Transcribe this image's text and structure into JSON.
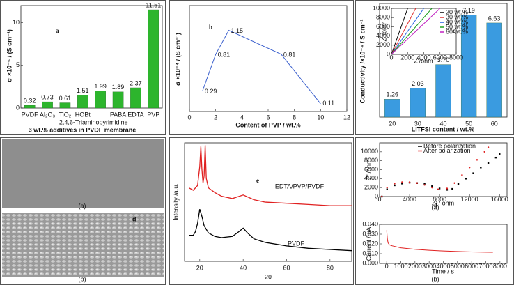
{
  "chart_data": [
    {
      "type": "bar",
      "panel_label": "a",
      "y_label": "σ ×10⁻⁵ / (S cm⁻¹)",
      "x_label": "3 wt.% additives in PVDF membrane",
      "categories": [
        "PVDF",
        "Al₂O₃",
        "TiO₂",
        "HOBt",
        "2,4,6-Triaminopyrimidine",
        "PABA",
        "EDTA",
        "PVP"
      ],
      "values": [
        0.32,
        0.73,
        0.61,
        1.51,
        1.99,
        1.89,
        2.37,
        11.51
      ],
      "color": "#2db52d",
      "ylim": [
        0,
        12
      ],
      "yticks": [
        0,
        5,
        10
      ]
    },
    {
      "type": "line",
      "panel_label": "b",
      "y_label": "σ ×10⁻⁴ / (S cm⁻¹)",
      "x_label": "Content of PVP / wt.%",
      "x": [
        1,
        2,
        3,
        7,
        10
      ],
      "values": [
        0.29,
        0.81,
        1.15,
        0.81,
        0.11
      ],
      "color": "#3a5fcd",
      "marker_color": "#e03030",
      "markers": true,
      "xlim": [
        0,
        12
      ],
      "xticks": [
        0,
        2,
        4,
        6,
        8,
        10,
        12
      ],
      "ylim": [
        0,
        1.5
      ]
    },
    {
      "type": "bar",
      "panel_label": "c",
      "y_label": "Conductivity /×10⁻⁴ / S cm⁻¹",
      "x_label": "LiTFSI content / wt.%",
      "categories": [
        "20",
        "30",
        "40",
        "50",
        "60"
      ],
      "values": [
        1.26,
        2.03,
        3.7,
        7.19,
        6.63
      ],
      "value_labels": [
        "1.26",
        "2.03",
        "3.70",
        "7.19",
        "6.63"
      ],
      "color": "#3a9be0",
      "ylim": [
        0,
        8
      ]
    },
    {
      "type": "line",
      "x_label": "Z'/ohm",
      "y_label": "Z''/ohm",
      "legend": "upper right",
      "series": [
        {
          "name": "20 wt.%",
          "color": "#000000",
          "x": [
            0,
            2000
          ],
          "values": [
            0,
            10000
          ]
        },
        {
          "name": "30 wt.%",
          "color": "#e03030",
          "x": [
            0,
            3000
          ],
          "values": [
            0,
            10000
          ]
        },
        {
          "name": "40 wt.%",
          "color": "#2060e0",
          "x": [
            0,
            4000
          ],
          "values": [
            0,
            10000
          ]
        },
        {
          "name": "50 wt.%",
          "color": "#20a020",
          "x": [
            0,
            5000
          ],
          "values": [
            0,
            10000
          ]
        },
        {
          "name": "60 wt.%",
          "color": "#c020c0",
          "x": [
            0,
            6000
          ],
          "values": [
            0,
            10000
          ]
        }
      ],
      "xlim": [
        0,
        8000
      ],
      "xticks": [
        0,
        2000,
        4000,
        6000,
        8000
      ],
      "ylim": [
        0,
        10000
      ],
      "yticks": [
        0,
        2000,
        4000,
        6000,
        8000,
        10000
      ]
    },
    {
      "type": "image",
      "panel_label": "d",
      "captions": [
        "(a)",
        "(b)"
      ]
    },
    {
      "type": "line",
      "panel_label": "e",
      "y_label": "Intensity /a.u.",
      "x_label": "2θ",
      "legend": "inline",
      "series": [
        {
          "name": "EDTA/PVP/PVDF",
          "color": "#e02020",
          "x": [
            15,
            17,
            19,
            20,
            20.5,
            21,
            21.5,
            22,
            22.5,
            23,
            24,
            27,
            30,
            35,
            40,
            45,
            50,
            60,
            70,
            80,
            90
          ],
          "values": [
            62,
            60,
            64,
            80,
            97,
            78,
            66,
            72,
            98,
            70,
            62,
            58,
            55,
            53,
            56,
            52,
            50,
            49,
            48,
            47,
            47
          ]
        },
        {
          "name": "PVDF",
          "color": "#000000",
          "x": [
            15,
            17,
            18,
            19,
            20,
            21,
            22,
            24,
            27,
            30,
            35,
            38,
            40,
            42,
            45,
            50,
            60,
            70,
            80,
            90
          ],
          "values": [
            22,
            22,
            25,
            32,
            44,
            38,
            30,
            24,
            21,
            20,
            21,
            25,
            28,
            24,
            19,
            16,
            13,
            11,
            10,
            9
          ]
        }
      ],
      "xlim": [
        13,
        90
      ],
      "xticks": [
        20,
        40,
        60,
        80
      ],
      "ylim": [
        0,
        100
      ]
    },
    {
      "type": "scatter",
      "panel_label": "f",
      "caption": "(a)",
      "x_label": "Z' / ohm",
      "y_label": "Z''/ohm",
      "legend": "upper center",
      "series": [
        {
          "name": "Before polarization",
          "color": "#000000",
          "x": [
            300,
            1000,
            2000,
            3000,
            4000,
            5000,
            6000,
            7000,
            8000,
            9000,
            9700,
            10500,
            11500,
            12500,
            13500,
            14500,
            15500,
            16000
          ],
          "values": [
            0,
            1600,
            2500,
            2900,
            3100,
            3000,
            2800,
            2300,
            1800,
            1500,
            1700,
            2800,
            4000,
            5200,
            6500,
            7500,
            8700,
            9500
          ]
        },
        {
          "name": "After polarization",
          "color": "#e02020",
          "x": [
            300,
            1000,
            2000,
            3000,
            4000,
            5000,
            6000,
            7000,
            7800,
            9000,
            10000,
            11000,
            12000,
            13000,
            14000,
            14500
          ],
          "values": [
            0,
            2000,
            2900,
            3200,
            3200,
            3000,
            2600,
            2000,
            1600,
            1800,
            3000,
            4800,
            6500,
            8200,
            10000,
            11000
          ]
        }
      ],
      "xlim": [
        0,
        17000
      ],
      "xticks": [
        0,
        4000,
        8000,
        12000,
        16000
      ],
      "ylim": [
        0,
        12000
      ],
      "yticks": [
        0,
        2000,
        4000,
        6000,
        8000,
        10000
      ]
    },
    {
      "type": "line",
      "caption": "(b)",
      "x_label": "Time / s",
      "y_label": "Current / uA",
      "series": [
        {
          "name": "Current",
          "color": "#e02020",
          "x": [
            0,
            50,
            100,
            200,
            400,
            700,
            1000,
            2000,
            3000,
            4000,
            5000,
            6000,
            7000,
            7500
          ],
          "values": [
            0.034,
            0.025,
            0.021,
            0.019,
            0.018,
            0.017,
            0.016,
            0.0145,
            0.0135,
            0.0128,
            0.0122,
            0.0118,
            0.0115,
            0.0114
          ]
        }
      ],
      "xlim": [
        -500,
        8500
      ],
      "xticks": [
        0,
        1000,
        2000,
        3000,
        4000,
        5000,
        6000,
        7000,
        8000
      ],
      "ylim": [
        0,
        0.04
      ],
      "yticks": [
        {
          "value": 0,
          "label": "0.000"
        },
        {
          "value": 0.01,
          "label": "0.010"
        },
        {
          "value": 0.02,
          "label": "0.020"
        },
        {
          "value": 0.03,
          "label": "0.030"
        },
        {
          "value": 0.04,
          "label": "0.040"
        }
      ]
    }
  ]
}
